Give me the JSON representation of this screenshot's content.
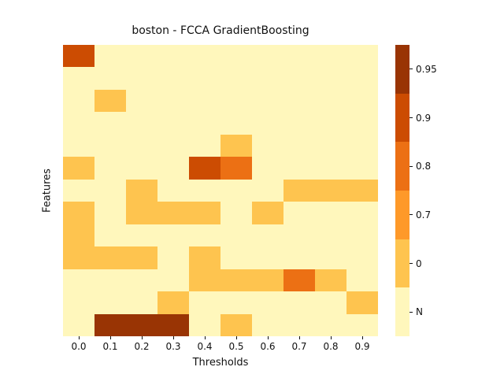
{
  "chart_data": {
    "type": "heatmap",
    "title": "boston - FCCA GradientBoosting",
    "xlabel": "Thresholds",
    "ylabel": "Features",
    "x_tick_labels": [
      "0.0",
      "0.1",
      "0.2",
      "0.3",
      "0.4",
      "0.5",
      "0.6",
      "0.7",
      "0.8",
      "0.9"
    ],
    "y_tick_labels": [],
    "rows": 13,
    "cols": 10,
    "value_categories": [
      "N",
      "0",
      "0.7",
      "0.8",
      "0.9",
      "0.95"
    ],
    "color_map": {
      "N": "#fff7bc",
      "0": "#fec44f",
      "0.7": "#fe9929",
      "0.8": "#ec7014",
      "0.9": "#cc4c02",
      "0.95": "#993404"
    },
    "colorbar": {
      "position": "right",
      "segments": [
        {
          "label": "0.95",
          "color": "#993404"
        },
        {
          "label": "0.9",
          "color": "#cc4c02"
        },
        {
          "label": "0.8",
          "color": "#ec7014"
        },
        {
          "label": "0.7",
          "color": "#fe9929"
        },
        {
          "label": "0",
          "color": "#fec44f"
        },
        {
          "label": "N",
          "color": "#fff7bc"
        }
      ]
    },
    "grid": [
      [
        "0.9",
        "N",
        "N",
        "N",
        "N",
        "N",
        "N",
        "N",
        "N",
        "N"
      ],
      [
        "N",
        "N",
        "N",
        "N",
        "N",
        "N",
        "N",
        "N",
        "N",
        "N"
      ],
      [
        "N",
        "0",
        "N",
        "N",
        "N",
        "N",
        "N",
        "N",
        "N",
        "N"
      ],
      [
        "N",
        "N",
        "N",
        "N",
        "N",
        "N",
        "N",
        "N",
        "N",
        "N"
      ],
      [
        "N",
        "N",
        "N",
        "N",
        "N",
        "0",
        "N",
        "N",
        "N",
        "N"
      ],
      [
        "0",
        "N",
        "N",
        "N",
        "0.9",
        "0.8",
        "N",
        "N",
        "N",
        "N"
      ],
      [
        "N",
        "N",
        "0",
        "N",
        "N",
        "N",
        "N",
        "0",
        "0",
        "0"
      ],
      [
        "0",
        "N",
        "0",
        "0",
        "0",
        "N",
        "0",
        "N",
        "N",
        "N"
      ],
      [
        "0",
        "N",
        "N",
        "N",
        "N",
        "N",
        "N",
        "N",
        "N",
        "N"
      ],
      [
        "0",
        "0",
        "0",
        "N",
        "0",
        "N",
        "N",
        "N",
        "N",
        "N"
      ],
      [
        "N",
        "N",
        "N",
        "N",
        "0",
        "0",
        "0",
        "0.8",
        "0",
        "N"
      ],
      [
        "N",
        "N",
        "N",
        "0",
        "N",
        "N",
        "N",
        "N",
        "N",
        "0"
      ],
      [
        "N",
        "0.95",
        "0.95",
        "0.95",
        "N",
        "0",
        "N",
        "N",
        "N",
        "N"
      ]
    ]
  }
}
